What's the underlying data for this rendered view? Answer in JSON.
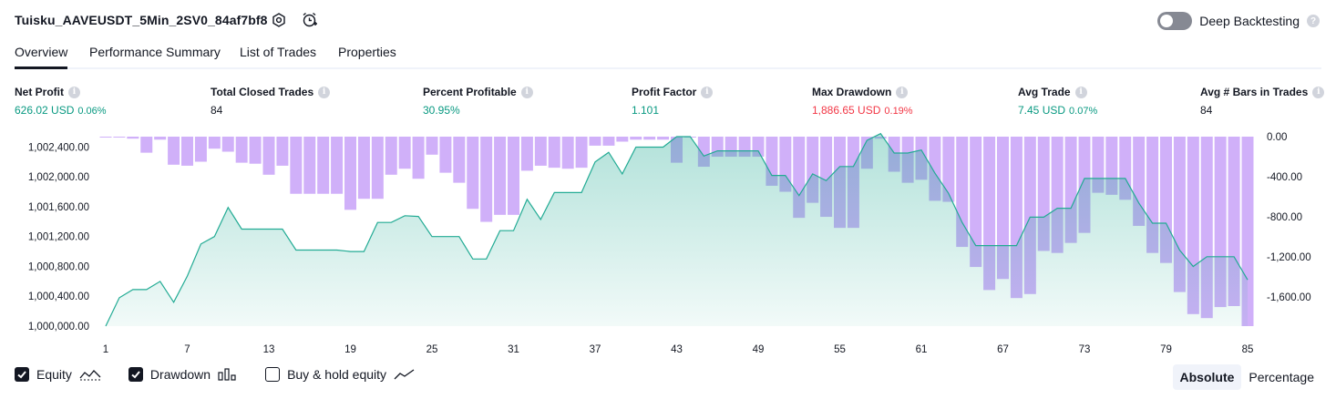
{
  "header": {
    "strategy_name": "Tuisku_AAVEUSDT_5Min_2SV0_84af7bf8",
    "settings_icon": "gear-icon",
    "alert_icon": "alarm-clock-plus-icon",
    "deep_backtesting_label": "Deep Backtesting",
    "deep_backtesting_enabled": false
  },
  "tabs": [
    {
      "label": "Overview",
      "active": true
    },
    {
      "label": "Performance Summary",
      "active": false
    },
    {
      "label": "List of Trades",
      "active": false
    },
    {
      "label": "Properties",
      "active": false
    }
  ],
  "metrics": [
    {
      "label": "Net Profit",
      "value": "626.02 USD",
      "pct": "0.06%",
      "color": "#089981"
    },
    {
      "label": "Total Closed Trades",
      "value": "84",
      "pct": "",
      "color": "#131722"
    },
    {
      "label": "Percent Profitable",
      "value": "30.95%",
      "pct": "",
      "color": "#089981"
    },
    {
      "label": "Profit Factor",
      "value": "1.101",
      "pct": "",
      "color": "#089981"
    },
    {
      "label": "Max Drawdown",
      "value": "1,886.65 USD",
      "pct": "0.19%",
      "color": "#f23645"
    },
    {
      "label": "Avg Trade",
      "value": "7.45 USD",
      "pct": "0.07%",
      "color": "#089981"
    },
    {
      "label": "Avg # Bars in Trades",
      "value": "84",
      "pct": "",
      "color": "#131722"
    }
  ],
  "chart_data": {
    "type": "area",
    "x_ticks": [
      "1",
      "7",
      "13",
      "19",
      "25",
      "31",
      "37",
      "43",
      "49",
      "55",
      "61",
      "67",
      "73",
      "79",
      "85"
    ],
    "x": [
      1,
      2,
      3,
      4,
      5,
      6,
      7,
      8,
      9,
      10,
      11,
      12,
      13,
      14,
      15,
      16,
      17,
      18,
      19,
      20,
      21,
      22,
      23,
      24,
      25,
      26,
      27,
      28,
      29,
      30,
      31,
      32,
      33,
      34,
      35,
      36,
      37,
      38,
      39,
      40,
      41,
      42,
      43,
      44,
      45,
      46,
      47,
      48,
      49,
      50,
      51,
      52,
      53,
      54,
      55,
      56,
      57,
      58,
      59,
      60,
      61,
      62,
      63,
      64,
      65,
      66,
      67,
      68,
      69,
      70,
      71,
      72,
      73,
      74,
      75,
      76,
      77,
      78,
      79,
      80,
      81,
      82,
      83,
      84,
      85
    ],
    "series": [
      {
        "name": "Equity",
        "axis": "left",
        "color": "#22ab94",
        "values": [
          1000000,
          1000380,
          1000490,
          1000490,
          1000600,
          1000320,
          1000670,
          1001100,
          1001200,
          1001590,
          1001300,
          1001300,
          1001300,
          1001300,
          1001020,
          1001020,
          1001020,
          1001020,
          1001000,
          1001000,
          1001390,
          1001390,
          1001480,
          1001470,
          1001200,
          1001200,
          1001200,
          1000900,
          1000900,
          1001280,
          1001280,
          1001700,
          1001430,
          1001790,
          1001790,
          1001790,
          1002200,
          1002330,
          1002040,
          1002400,
          1002400,
          1002400,
          1002540,
          1002540,
          1002280,
          1002350,
          1002350,
          1002350,
          1002350,
          1002020,
          1002020,
          1001750,
          1002040,
          1001950,
          1002140,
          1002140,
          1002490,
          1002580,
          1002320,
          1002320,
          1002360,
          1002050,
          1001780,
          1001390,
          1001080,
          1001080,
          1001080,
          1001080,
          1001460,
          1001460,
          1001580,
          1001580,
          1001980,
          1001980,
          1001980,
          1001980,
          1001650,
          1001380,
          1001380,
          1001020,
          1000800,
          1000930,
          1000930,
          1000930,
          1000620
        ]
      },
      {
        "name": "Drawdown",
        "axis": "right",
        "color": "#c8a2f8",
        "values": [
          0,
          0,
          -20,
          -160,
          -30,
          -280,
          -290,
          -250,
          -120,
          -150,
          -260,
          -270,
          -380,
          -290,
          -570,
          -570,
          -570,
          -570,
          -730,
          -620,
          -620,
          -380,
          -320,
          -420,
          -180,
          -360,
          -460,
          -720,
          -850,
          -780,
          -780,
          -340,
          -290,
          -310,
          -320,
          -310,
          -90,
          -90,
          -50,
          -30,
          -30,
          -30,
          -260,
          0,
          -300,
          -200,
          -200,
          -200,
          -200,
          -490,
          -550,
          -810,
          -660,
          -800,
          -910,
          -910,
          -320,
          -20,
          -350,
          -460,
          -430,
          -640,
          -650,
          -1100,
          -1300,
          -1530,
          -1420,
          -1610,
          -1570,
          -1140,
          -1160,
          -1060,
          -960,
          -560,
          -580,
          -630,
          -890,
          -1160,
          -1260,
          -1550,
          -1770,
          -1810,
          -1700,
          -1690,
          -1890
        ]
      }
    ],
    "left_axis_ticks": [
      "1,000,000.00",
      "1,000,400.00",
      "1,000,800.00",
      "1,001,200.00",
      "1,001,600.00",
      "1,002,000.00",
      "1,002,400.00"
    ],
    "left_ylim": [
      1000000,
      1002540
    ],
    "right_axis_ticks": [
      "0.00",
      "-400.00",
      "-800.00",
      "-1,200.00",
      "-1,600.00"
    ],
    "right_ylim": [
      -1890,
      0
    ]
  },
  "legend": [
    {
      "label": "Equity",
      "checked": true,
      "icon": "equity-line-icon"
    },
    {
      "label": "Drawdown",
      "checked": true,
      "icon": "drawdown-bars-icon"
    },
    {
      "label": "Buy & hold equity",
      "checked": false,
      "icon": "buy-hold-line-icon"
    }
  ],
  "view_mode": {
    "options": [
      "Absolute",
      "Percentage"
    ],
    "selected": "Absolute"
  }
}
